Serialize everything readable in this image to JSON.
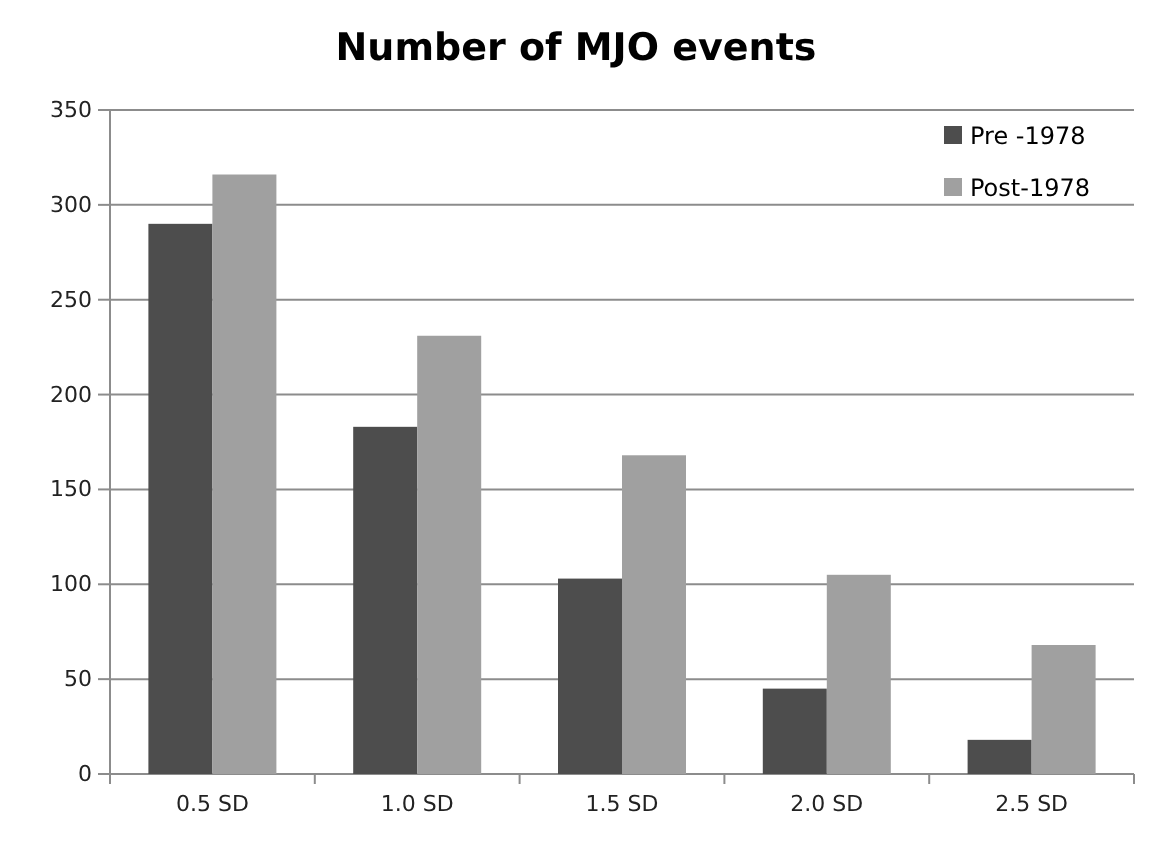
{
  "chart_data": {
    "type": "bar",
    "title": "Number of MJO events",
    "categories": [
      "0.5 SD",
      "1.0 SD",
      "1.5 SD",
      "2.0 SD",
      "2.5 SD"
    ],
    "series": [
      {
        "name": "Pre -1978",
        "color": "#4d4d4d",
        "values": [
          290,
          183,
          103,
          45,
          18
        ]
      },
      {
        "name": "Post-1978",
        "color": "#a0a0a0",
        "values": [
          316,
          231,
          168,
          105,
          68
        ]
      }
    ],
    "ylim": [
      0,
      350
    ],
    "yticks": [
      0,
      50,
      100,
      150,
      200,
      250,
      300,
      350
    ],
    "grid": "y",
    "legend": "top right"
  }
}
